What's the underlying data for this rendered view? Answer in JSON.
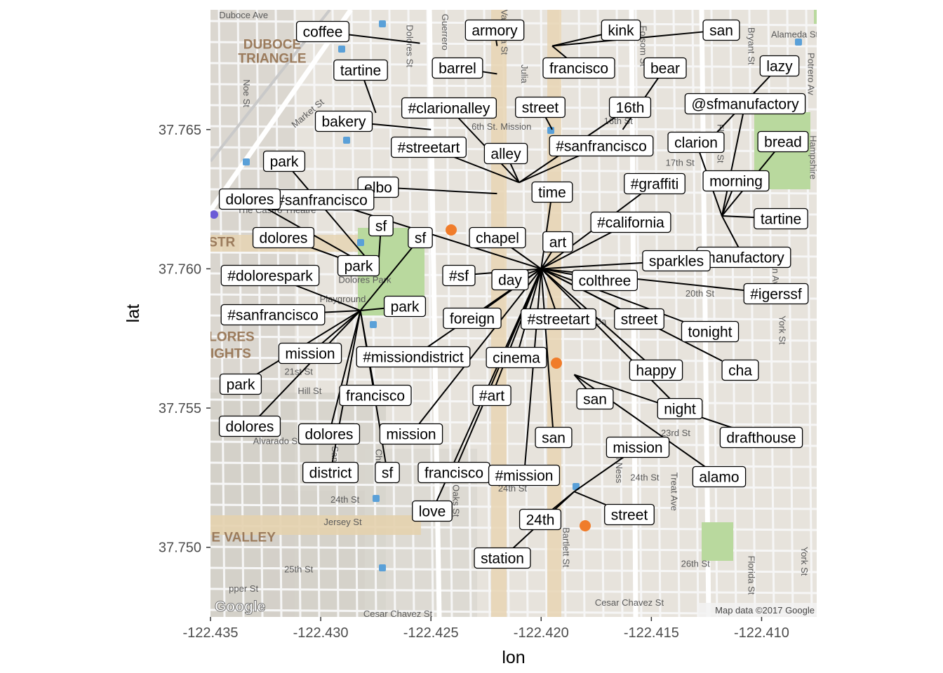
{
  "chart_data": {
    "type": "scatter",
    "xlabel": "lon",
    "ylabel": "lat",
    "xlim": [
      -122.435,
      -122.4075
    ],
    "ylim": [
      37.7475,
      37.7693
    ],
    "x_ticks": [
      -122.435,
      -122.43,
      -122.425,
      -122.42,
      -122.415,
      -122.41
    ],
    "x_tick_labels": [
      "-122.435",
      "-122.430",
      "-122.425",
      "-122.420",
      "-122.415",
      "-122.410"
    ],
    "y_ticks": [
      37.75,
      37.755,
      37.76,
      37.765
    ],
    "y_tick_labels": [
      "37.750",
      "37.755",
      "37.760",
      "37.765"
    ],
    "background": "Google road map of the Mission / Dolores / Castro area, San Francisco",
    "map_attribution": "Map data ©2017 Google",
    "map_logo": "Google",
    "map_street_labels": [
      {
        "text": "Duboce Ave",
        "lon": -122.4335,
        "lat": 37.769
      },
      {
        "text": "DUBOCE",
        "lon": -122.4322,
        "lat": 37.7679,
        "bold": true
      },
      {
        "text": "TRIANGLE",
        "lon": -122.4322,
        "lat": 37.7674,
        "bold": true
      },
      {
        "text": "Noe St",
        "lon": -122.4335,
        "lat": 37.7663,
        "rot": 90
      },
      {
        "text": "Market St",
        "lon": -122.4305,
        "lat": 37.7655,
        "rot": -40
      },
      {
        "text": "Dolores St",
        "lon": -122.4261,
        "lat": 37.768,
        "rot": 90
      },
      {
        "text": "Guerrero",
        "lon": -122.4245,
        "lat": 37.7685,
        "rot": 90
      },
      {
        "text": "Valencia St",
        "lon": -122.4218,
        "lat": 37.7685,
        "rot": 90
      },
      {
        "text": "Julia",
        "lon": -122.4209,
        "lat": 37.767,
        "rot": 90
      },
      {
        "text": "Folsom St",
        "lon": -122.4155,
        "lat": 37.768,
        "rot": 90
      },
      {
        "text": "Bryant St",
        "lon": -122.4106,
        "lat": 37.768,
        "rot": 90
      },
      {
        "text": "Alameda St",
        "lon": -122.4085,
        "lat": 37.7683
      },
      {
        "text": "Potrero Av",
        "lon": -122.4079,
        "lat": 37.767,
        "rot": 90
      },
      {
        "text": "16th St",
        "lon": -122.4165,
        "lat": 37.7652
      },
      {
        "text": "17th St",
        "lon": -122.4137,
        "lat": 37.7637
      },
      {
        "text": "6th St. Mission",
        "lon": -122.4218,
        "lat": 37.765
      },
      {
        "text": "Florida St",
        "lon": -122.412,
        "lat": 37.7645,
        "rot": 90
      },
      {
        "text": "Hampshire",
        "lon": -122.4078,
        "lat": 37.764,
        "rot": 90
      },
      {
        "text": "The Castro Theatre",
        "lon": -122.432,
        "lat": 37.762
      },
      {
        "text": "ASTR",
        "lon": -122.4347,
        "lat": 37.7608,
        "bold": true
      },
      {
        "text": "Dolores Park",
        "lon": -122.428,
        "lat": 37.7595
      },
      {
        "text": "Playground",
        "lon": -122.429,
        "lat": 37.7588
      },
      {
        "text": "DOLORES",
        "lon": -122.4345,
        "lat": 37.7574,
        "bold": true
      },
      {
        "text": "HEIGHTS",
        "lon": -122.4345,
        "lat": 37.7568,
        "bold": true
      },
      {
        "text": "21st St",
        "lon": -122.431,
        "lat": 37.7562
      },
      {
        "text": "Hill St",
        "lon": -122.4305,
        "lat": 37.7555
      },
      {
        "text": "Alvarado St",
        "lon": -122.432,
        "lat": 37.7537
      },
      {
        "text": "20th St",
        "lon": -122.4128,
        "lat": 37.759
      },
      {
        "text": "23rd St",
        "lon": -122.4139,
        "lat": 37.754
      },
      {
        "text": "24th St",
        "lon": -122.4289,
        "lat": 37.7516
      },
      {
        "text": "24th St",
        "lon": -122.4213,
        "lat": 37.752
      },
      {
        "text": "24th St",
        "lon": -122.4153,
        "lat": 37.7524
      },
      {
        "text": "Jersey St",
        "lon": -122.429,
        "lat": 37.7508
      },
      {
        "text": "E VALLEY",
        "lon": -122.4335,
        "lat": 37.7502,
        "bold": true
      },
      {
        "text": "25th St",
        "lon": -122.431,
        "lat": 37.7491
      },
      {
        "text": "26th St",
        "lon": -122.413,
        "lat": 37.7493
      },
      {
        "text": "pper St",
        "lon": -122.4335,
        "lat": 37.7484
      },
      {
        "text": "Cesar Chavez St",
        "lon": -122.416,
        "lat": 37.7479
      },
      {
        "text": "Cesar Chavez St",
        "lon": -122.4265,
        "lat": 37.7475
      },
      {
        "text": "Bartlett St",
        "lon": -122.419,
        "lat": 37.75,
        "rot": 90
      },
      {
        "text": "Treat Ave",
        "lon": -122.4141,
        "lat": 37.752,
        "rot": 90
      },
      {
        "text": "Van Ness",
        "lon": -122.4166,
        "lat": 37.753,
        "rot": 90
      },
      {
        "text": "Ocean Ave",
        "lon": -122.4095,
        "lat": 37.76,
        "rot": 90
      },
      {
        "text": "York St",
        "lon": -122.4092,
        "lat": 37.7578,
        "rot": 90
      },
      {
        "text": "Florida St",
        "lon": -122.4106,
        "lat": 37.749,
        "rot": 90
      },
      {
        "text": "York St",
        "lon": -122.4082,
        "lat": 37.7495,
        "rot": 90
      },
      {
        "text": "Ca",
        "lon": -122.4173,
        "lat": 37.758
      },
      {
        "text": "Fair Oaks St",
        "lon": -122.424,
        "lat": 37.752,
        "rot": 90
      },
      {
        "text": "Church",
        "lon": -122.4275,
        "lat": 37.753,
        "rot": 90
      },
      {
        "text": "Sanchez",
        "lon": -122.4295,
        "lat": 37.753,
        "rot": 90
      }
    ],
    "series": [
      {
        "name": "posts",
        "points": [
          {
            "text": "coffee",
            "lon": -122.4255,
            "lat": 37.7681
          },
          {
            "text": "barrel",
            "lon": -122.422,
            "lat": 37.767
          },
          {
            "text": "tartine",
            "lon": -122.4275,
            "lat": 37.7656
          },
          {
            "text": "bakery",
            "lon": -122.425,
            "lat": 37.765
          },
          {
            "text": "armory",
            "lon": -122.422,
            "lat": 37.768
          },
          {
            "text": "kink",
            "lon": -122.4195,
            "lat": 37.768
          },
          {
            "text": "san",
            "lon": -122.4195,
            "lat": 37.768
          },
          {
            "text": "francisco",
            "lon": -122.4195,
            "lat": 37.768
          },
          {
            "text": "bear",
            "lon": -122.4163,
            "lat": 37.765
          },
          {
            "text": "lazy",
            "lon": -122.4125,
            "lat": 37.7645
          },
          {
            "text": "#clarionalley",
            "lon": -122.421,
            "lat": 37.7631
          },
          {
            "text": "#streetart",
            "lon": -122.421,
            "lat": 37.7631
          },
          {
            "text": "alley",
            "lon": -122.421,
            "lat": 37.7631
          },
          {
            "text": "street",
            "lon": -122.4195,
            "lat": 37.765
          },
          {
            "text": "16th",
            "lon": -122.421,
            "lat": 37.7631
          },
          {
            "text": "#sanfrancisco",
            "lon": -122.421,
            "lat": 37.7631
          },
          {
            "text": "elbo",
            "lon": -122.422,
            "lat": 37.7627
          },
          {
            "text": "@sfmanufactory",
            "lon": -122.4118,
            "lat": 37.7619
          },
          {
            "text": "clarion",
            "lon": -122.4118,
            "lat": 37.7619
          },
          {
            "text": "bread",
            "lon": -122.4118,
            "lat": 37.7619
          },
          {
            "text": "morning",
            "lon": -122.4118,
            "lat": 37.7619
          },
          {
            "text": "tartine",
            "lon": -122.4118,
            "lat": 37.7619
          },
          {
            "text": "manufactory",
            "lon": -122.4118,
            "lat": 37.7619
          },
          {
            "text": "time",
            "lon": -122.42,
            "lat": 37.76
          },
          {
            "text": "#graffiti",
            "lon": -122.42,
            "lat": 37.76
          },
          {
            "text": "#california",
            "lon": -122.42,
            "lat": 37.76
          },
          {
            "text": "art",
            "lon": -122.42,
            "lat": 37.76
          },
          {
            "text": "chapel",
            "lon": -122.42,
            "lat": 37.76
          },
          {
            "text": "#sf",
            "lon": -122.42,
            "lat": 37.76
          },
          {
            "text": "day",
            "lon": -122.42,
            "lat": 37.76
          },
          {
            "text": "colthree",
            "lon": -122.42,
            "lat": 37.76
          },
          {
            "text": "sparkles",
            "lon": -122.42,
            "lat": 37.76
          },
          {
            "text": "#igerssf",
            "lon": -122.42,
            "lat": 37.76
          },
          {
            "text": "street",
            "lon": -122.42,
            "lat": 37.76
          },
          {
            "text": "tonight",
            "lon": -122.42,
            "lat": 37.76
          },
          {
            "text": "cha",
            "lon": -122.42,
            "lat": 37.76
          },
          {
            "text": "happy",
            "lon": -122.42,
            "lat": 37.76
          },
          {
            "text": "night",
            "lon": -122.42,
            "lat": 37.76
          },
          {
            "text": "#streetart",
            "lon": -122.42,
            "lat": 37.76
          },
          {
            "text": "foreign",
            "lon": -122.42,
            "lat": 37.76
          },
          {
            "text": "cinema",
            "lon": -122.42,
            "lat": 37.76
          },
          {
            "text": "#sanfrancisco",
            "lon": -122.42,
            "lat": 37.76
          },
          {
            "text": "#missiondistrict",
            "lon": -122.42,
            "lat": 37.76
          },
          {
            "text": "#art",
            "lon": -122.42,
            "lat": 37.76
          },
          {
            "text": "mission",
            "lon": -122.42,
            "lat": 37.76
          },
          {
            "text": "francisco",
            "lon": -122.42,
            "lat": 37.76
          },
          {
            "text": "#mission",
            "lon": -122.42,
            "lat": 37.76
          },
          {
            "text": "san",
            "lon": -122.42,
            "lat": 37.76
          },
          {
            "text": "love",
            "lon": -122.42,
            "lat": 37.76
          },
          {
            "text": "park",
            "lon": -122.4274,
            "lat": 37.7599
          },
          {
            "text": "dolores",
            "lon": -122.4274,
            "lat": 37.7599
          },
          {
            "text": "sf",
            "lon": -122.4274,
            "lat": 37.7599
          },
          {
            "text": "dolores",
            "lon": -122.4274,
            "lat": 37.7599
          },
          {
            "text": "park",
            "lon": -122.4274,
            "lat": 37.7599
          },
          {
            "text": "#dolorespark",
            "lon": -122.4282,
            "lat": 37.7585
          },
          {
            "text": "#sanfrancisco",
            "lon": -122.4282,
            "lat": 37.7585
          },
          {
            "text": "sf",
            "lon": -122.4282,
            "lat": 37.7585
          },
          {
            "text": "park",
            "lon": -122.4282,
            "lat": 37.7585
          },
          {
            "text": "mission",
            "lon": -122.4282,
            "lat": 37.7585
          },
          {
            "text": "park",
            "lon": -122.4282,
            "lat": 37.7585
          },
          {
            "text": "dolores",
            "lon": -122.4282,
            "lat": 37.7585
          },
          {
            "text": "dolores",
            "lon": -122.4282,
            "lat": 37.7585
          },
          {
            "text": "francisco",
            "lon": -122.4282,
            "lat": 37.7585
          },
          {
            "text": "district",
            "lon": -122.4282,
            "lat": 37.7585
          },
          {
            "text": "sf",
            "lon": -122.4282,
            "lat": 37.7585
          },
          {
            "text": "san",
            "lon": -122.4185,
            "lat": 37.7562
          },
          {
            "text": "drafthouse",
            "lon": -122.4185,
            "lat": 37.7562
          },
          {
            "text": "alamo",
            "lon": -122.4185,
            "lat": 37.7562
          },
          {
            "text": "mission",
            "lon": -122.4185,
            "lat": 37.752
          },
          {
            "text": "street",
            "lon": -122.4185,
            "lat": 37.752
          },
          {
            "text": "24th",
            "lon": -122.4185,
            "lat": 37.752
          },
          {
            "text": "station",
            "lon": -122.4185,
            "lat": 37.752
          }
        ]
      }
    ]
  }
}
